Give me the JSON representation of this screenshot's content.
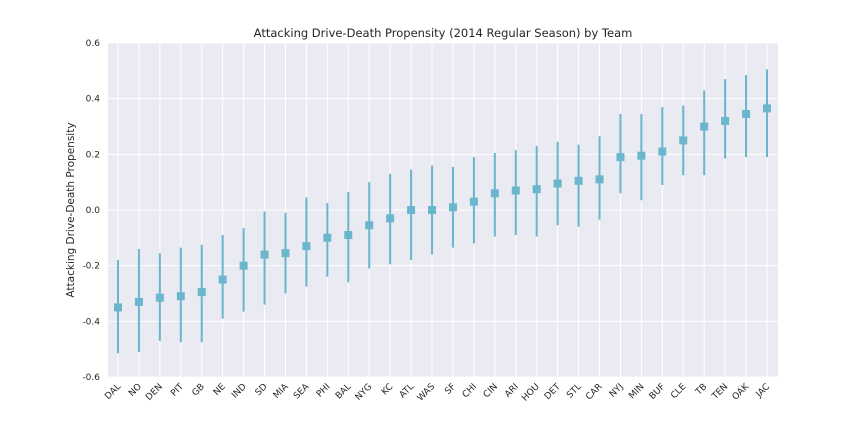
{
  "chart_data": {
    "type": "scatter",
    "title": "Attacking Drive-Death Propensity (2014 Regular Season) by Team",
    "xlabel": "",
    "ylabel": "Attacking Drive-Death Propensity",
    "ylim": [
      -0.6,
      0.6
    ],
    "yticks": [
      "-0.6",
      "-0.4",
      "-0.2",
      "0.0",
      "0.2",
      "0.4",
      "0.6"
    ],
    "grid": true,
    "legend": "none",
    "marker": "square",
    "color": "#6ab6cc",
    "background": "#eaeaf2",
    "categories": [
      "DAL",
      "NO",
      "DEN",
      "PIT",
      "GB",
      "NE",
      "IND",
      "SD",
      "MIA",
      "SEA",
      "PHI",
      "BAL",
      "NYG",
      "KC",
      "ATL",
      "WAS",
      "SF",
      "CHI",
      "CIN",
      "ARI",
      "HOU",
      "DET",
      "STL",
      "CAR",
      "NYJ",
      "MIN",
      "BUF",
      "CLE",
      "TB",
      "TEN",
      "OAK",
      "JAC"
    ],
    "values": [
      -0.35,
      -0.33,
      -0.315,
      -0.31,
      -0.295,
      -0.25,
      -0.2,
      -0.16,
      -0.155,
      -0.13,
      -0.1,
      -0.09,
      -0.055,
      -0.03,
      0.0,
      0.0,
      0.01,
      0.03,
      0.06,
      0.07,
      0.075,
      0.095,
      0.105,
      0.11,
      0.19,
      0.195,
      0.21,
      0.25,
      0.3,
      0.32,
      0.345,
      0.365
    ],
    "lower": [
      -0.515,
      -0.51,
      -0.47,
      -0.475,
      -0.475,
      -0.39,
      -0.365,
      -0.34,
      -0.3,
      -0.275,
      -0.24,
      -0.26,
      -0.21,
      -0.195,
      -0.18,
      -0.16,
      -0.135,
      -0.12,
      -0.095,
      -0.09,
      -0.095,
      -0.055,
      -0.06,
      -0.035,
      0.06,
      0.035,
      0.09,
      0.125,
      0.125,
      0.185,
      0.19,
      0.19
    ],
    "upper": [
      -0.18,
      -0.14,
      -0.155,
      -0.135,
      -0.125,
      -0.09,
      -0.065,
      -0.005,
      -0.01,
      0.045,
      0.025,
      0.065,
      0.1,
      0.13,
      0.145,
      0.16,
      0.155,
      0.19,
      0.205,
      0.215,
      0.23,
      0.245,
      0.235,
      0.265,
      0.345,
      0.345,
      0.37,
      0.375,
      0.43,
      0.47,
      0.485,
      0.505
    ]
  }
}
